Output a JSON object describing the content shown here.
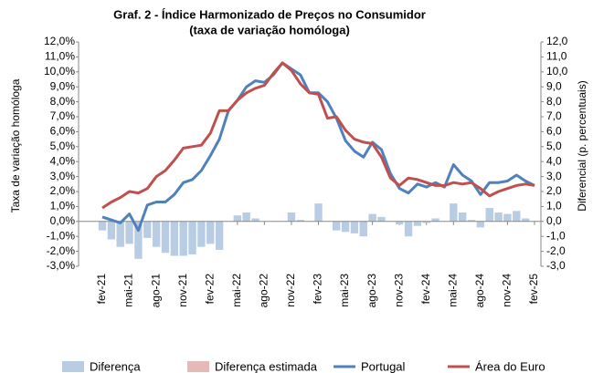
{
  "chart_data": {
    "type": "combo",
    "title": "Graf. 2 - Índice Harmonizado de Preços no Consumidor",
    "subtitle": "(taxa de variação homóloga)",
    "y_label": "Taxa de variação homóloga",
    "y2_label": "Diferencial (p. percentuais)",
    "categories": [
      "fev-21",
      null,
      null,
      "mai-21",
      null,
      null,
      "ago-21",
      null,
      null,
      "nov-21",
      null,
      null,
      "fev-22",
      null,
      null,
      "mai-22",
      null,
      null,
      "ago-22",
      null,
      null,
      "nov-22",
      null,
      null,
      "fev-23",
      null,
      null,
      "mai-23",
      null,
      null,
      "ago-23",
      null,
      null,
      "nov-23",
      null,
      null,
      "fev-24",
      null,
      null,
      "mai-24",
      null,
      null,
      "ago-24",
      null,
      null,
      "nov-24",
      null,
      null,
      "fev-25"
    ],
    "ylim": [
      -3,
      12
    ],
    "yticks": [
      {
        "value": -3,
        "label": "-3,0%"
      },
      {
        "value": -2,
        "label": "-2,0%"
      },
      {
        "value": -1,
        "label": "-1,0%"
      },
      {
        "value": 0,
        "label": "0,0%"
      },
      {
        "value": 1,
        "label": "1,0%"
      },
      {
        "value": 2,
        "label": "2,0%"
      },
      {
        "value": 3,
        "label": "3,0%"
      },
      {
        "value": 4,
        "label": "4,0%"
      },
      {
        "value": 5,
        "label": "5,0%"
      },
      {
        "value": 6,
        "label": "6,0%"
      },
      {
        "value": 7,
        "label": "7,0%"
      },
      {
        "value": 8,
        "label": "8,0%"
      },
      {
        "value": 9,
        "label": "9,0%"
      },
      {
        "value": 10,
        "label": "10,0%"
      },
      {
        "value": 11,
        "label": "11,0%"
      },
      {
        "value": 12,
        "label": "12,0%"
      }
    ],
    "y2lim": [
      -3,
      12
    ],
    "y2ticks": [
      {
        "value": -3,
        "label": "-3,0"
      },
      {
        "value": -2,
        "label": "-2,0"
      },
      {
        "value": -1,
        "label": "-1,0"
      },
      {
        "value": 0,
        "label": "0,0"
      },
      {
        "value": 1,
        "label": "1,0"
      },
      {
        "value": 2,
        "label": "2,0"
      },
      {
        "value": 3,
        "label": "3,0"
      },
      {
        "value": 4,
        "label": "4,0"
      },
      {
        "value": 5,
        "label": "5,0"
      },
      {
        "value": 6,
        "label": "6,0"
      },
      {
        "value": 7,
        "label": "7,0"
      },
      {
        "value": 8,
        "label": "8,0"
      },
      {
        "value": 9,
        "label": "9,0"
      },
      {
        "value": 10,
        "label": "10,0"
      },
      {
        "value": 11,
        "label": "11,0"
      },
      {
        "value": 12,
        "label": "12,0"
      }
    ],
    "series": [
      {
        "name": "Diferença",
        "kind": "bar",
        "axis": "y2",
        "color": "#b8cce4",
        "values": [
          -0.6,
          -1.2,
          -1.7,
          -1.5,
          -2.5,
          -1.1,
          -1.7,
          -2.1,
          -2.3,
          -2.3,
          -2.2,
          -1.7,
          -1.5,
          -1.9,
          0.0,
          0.4,
          0.6,
          0.2,
          0.0,
          0.0,
          0.0,
          0.6,
          0.1,
          0.0,
          1.2,
          0.0,
          -0.6,
          -0.7,
          -0.8,
          -1.0,
          0.5,
          0.3,
          0.0,
          -0.2,
          -1.0,
          -0.3,
          -0.1,
          0.2,
          0.0,
          1.2,
          0.6,
          0.1,
          -0.4,
          0.9,
          0.6,
          0.5,
          0.7,
          0.2,
          0.0
        ]
      },
      {
        "name": "Diferença estimada",
        "kind": "bar",
        "axis": "y2",
        "color": "#e6b9b8",
        "values": [
          null,
          null,
          null,
          null,
          null,
          null,
          null,
          null,
          null,
          null,
          null,
          null,
          null,
          null,
          null,
          null,
          null,
          null,
          null,
          null,
          null,
          null,
          null,
          null,
          null,
          null,
          null,
          null,
          null,
          null,
          null,
          null,
          null,
          null,
          null,
          null,
          null,
          null,
          null,
          null,
          null,
          null,
          null,
          null,
          null,
          null,
          null,
          null,
          null
        ]
      },
      {
        "name": "Portugal",
        "kind": "line",
        "color": "#4f81bd",
        "values": [
          0.3,
          0.1,
          -0.1,
          0.5,
          -0.6,
          1.1,
          1.3,
          1.3,
          1.8,
          2.6,
          2.8,
          3.4,
          4.4,
          5.5,
          7.4,
          8.1,
          9.0,
          9.4,
          9.3,
          9.8,
          10.6,
          10.2,
          9.8,
          8.6,
          8.6,
          8.0,
          6.9,
          5.4,
          4.7,
          4.3,
          5.3,
          4.8,
          3.2,
          2.2,
          1.9,
          2.5,
          2.3,
          2.6,
          2.3,
          3.8,
          3.1,
          2.7,
          1.8,
          2.6,
          2.6,
          2.7,
          3.1,
          2.7,
          2.4
        ]
      },
      {
        "name": "Área do Euro",
        "kind": "line",
        "color": "#c0504d",
        "values": [
          0.9,
          1.3,
          1.6,
          2.0,
          1.9,
          2.2,
          3.0,
          3.4,
          4.1,
          4.9,
          5.0,
          5.1,
          5.9,
          7.4,
          7.4,
          8.1,
          8.6,
          8.9,
          9.1,
          9.9,
          10.6,
          10.1,
          9.2,
          8.6,
          8.5,
          6.9,
          7.0,
          6.1,
          5.5,
          5.3,
          5.2,
          4.3,
          2.9,
          2.4,
          2.9,
          2.8,
          2.6,
          2.4,
          2.4,
          2.6,
          2.5,
          2.6,
          2.2,
          1.7,
          2.0,
          2.2,
          2.4,
          2.5,
          2.4
        ]
      }
    ]
  }
}
